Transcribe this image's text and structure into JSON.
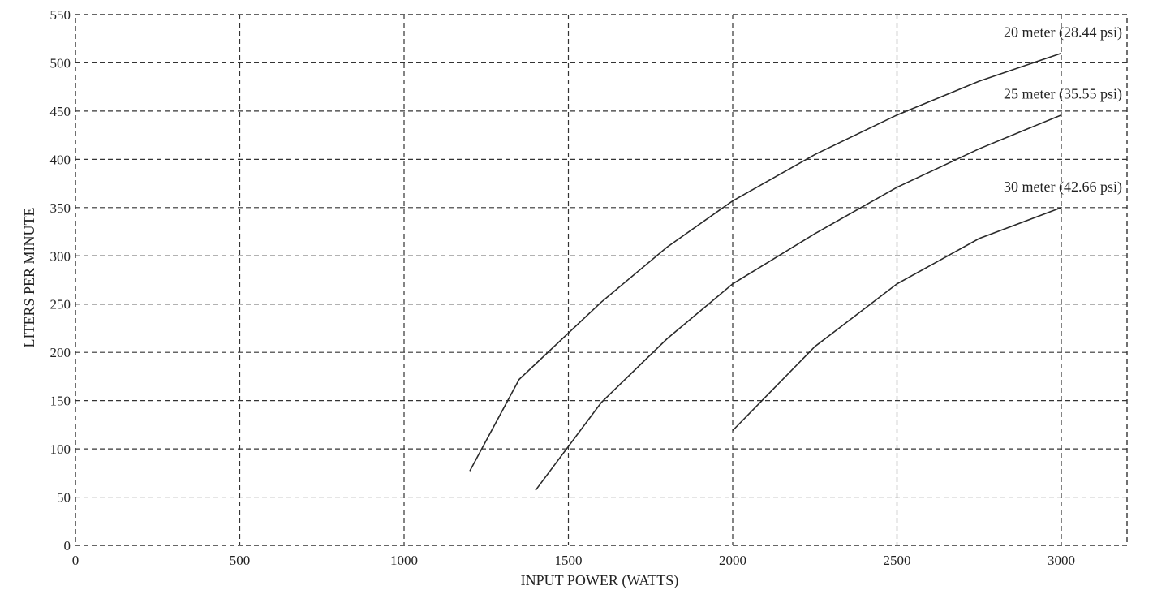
{
  "chart_data": {
    "type": "line",
    "title": "",
    "xlabel": "INPUT POWER (WATTS)",
    "ylabel": "LITERS PER MINUTE",
    "xlim": [
      0,
      3200
    ],
    "ylim": [
      0,
      550
    ],
    "x_ticks": [
      0,
      500,
      1000,
      1500,
      2000,
      2500,
      3000
    ],
    "y_ticks": [
      0,
      50,
      100,
      150,
      200,
      250,
      300,
      350,
      400,
      450,
      500,
      550
    ],
    "grid": true,
    "grid_style": "dashed",
    "series": [
      {
        "name": "20 meter (28.44 psi)",
        "x": [
          1200,
          1350,
          1600,
          1800,
          2000,
          2250,
          2500,
          2750,
          3000
        ],
        "y": [
          77,
          172,
          252,
          309,
          357,
          405,
          446,
          481,
          510
        ]
      },
      {
        "name": "25 meter (35.55 psi)",
        "x": [
          1400,
          1600,
          1800,
          2000,
          2250,
          2500,
          2750,
          3000
        ],
        "y": [
          57,
          148,
          214,
          271,
          323,
          371,
          411,
          446
        ]
      },
      {
        "name": "30 meter (42.66 psi)",
        "x": [
          2000,
          2250,
          2500,
          2750,
          3000
        ],
        "y": [
          119,
          206,
          271,
          318,
          350
        ]
      }
    ]
  }
}
